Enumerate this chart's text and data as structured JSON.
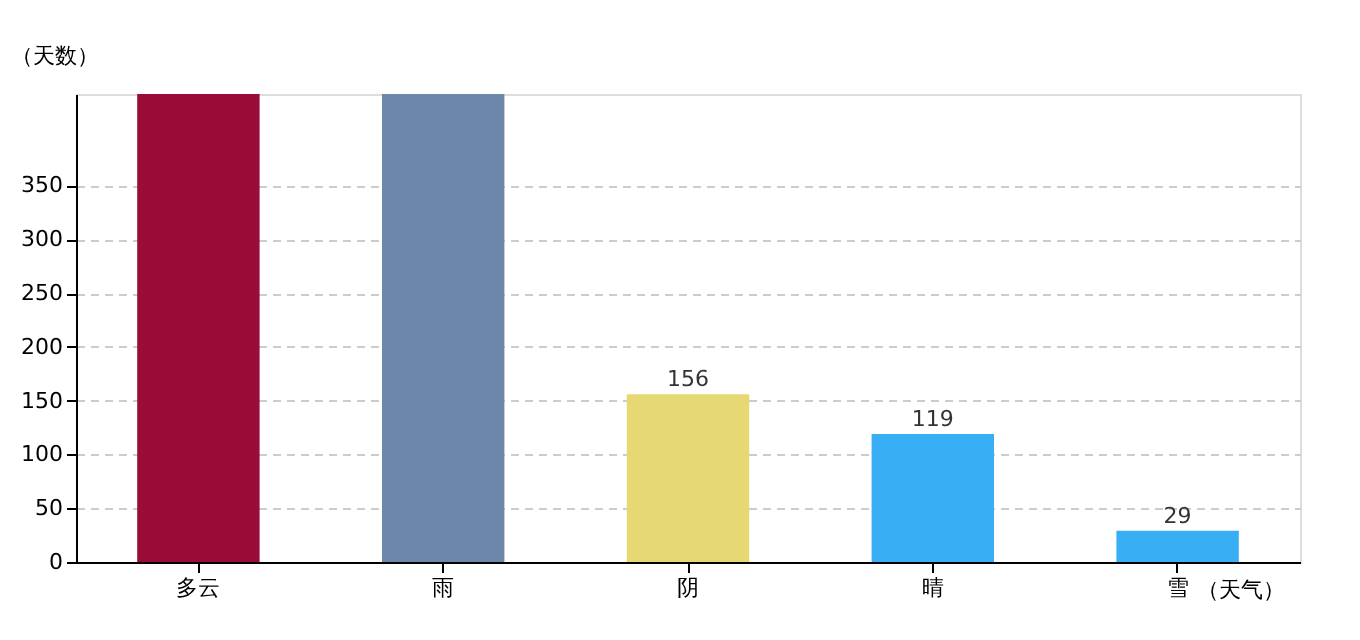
{
  "chart_data": {
    "type": "bar",
    "xlabel": "（天气）",
    "ylabel": "（天数）",
    "categories": [
      "多云",
      "雨",
      "阴",
      "晴",
      "雪"
    ],
    "values": [
      435,
      435,
      156,
      119,
      29
    ],
    "colors": [
      "#9b0b37",
      "#6d87aa",
      "#e6d873",
      "#38aef5",
      "#38aef5"
    ],
    "value_labels": [
      null,
      null,
      "156",
      "119",
      "29"
    ],
    "ylim": [
      0,
      435
    ],
    "yticks": [
      0,
      50,
      100,
      150,
      200,
      250,
      300,
      350
    ],
    "grid": "y"
  }
}
